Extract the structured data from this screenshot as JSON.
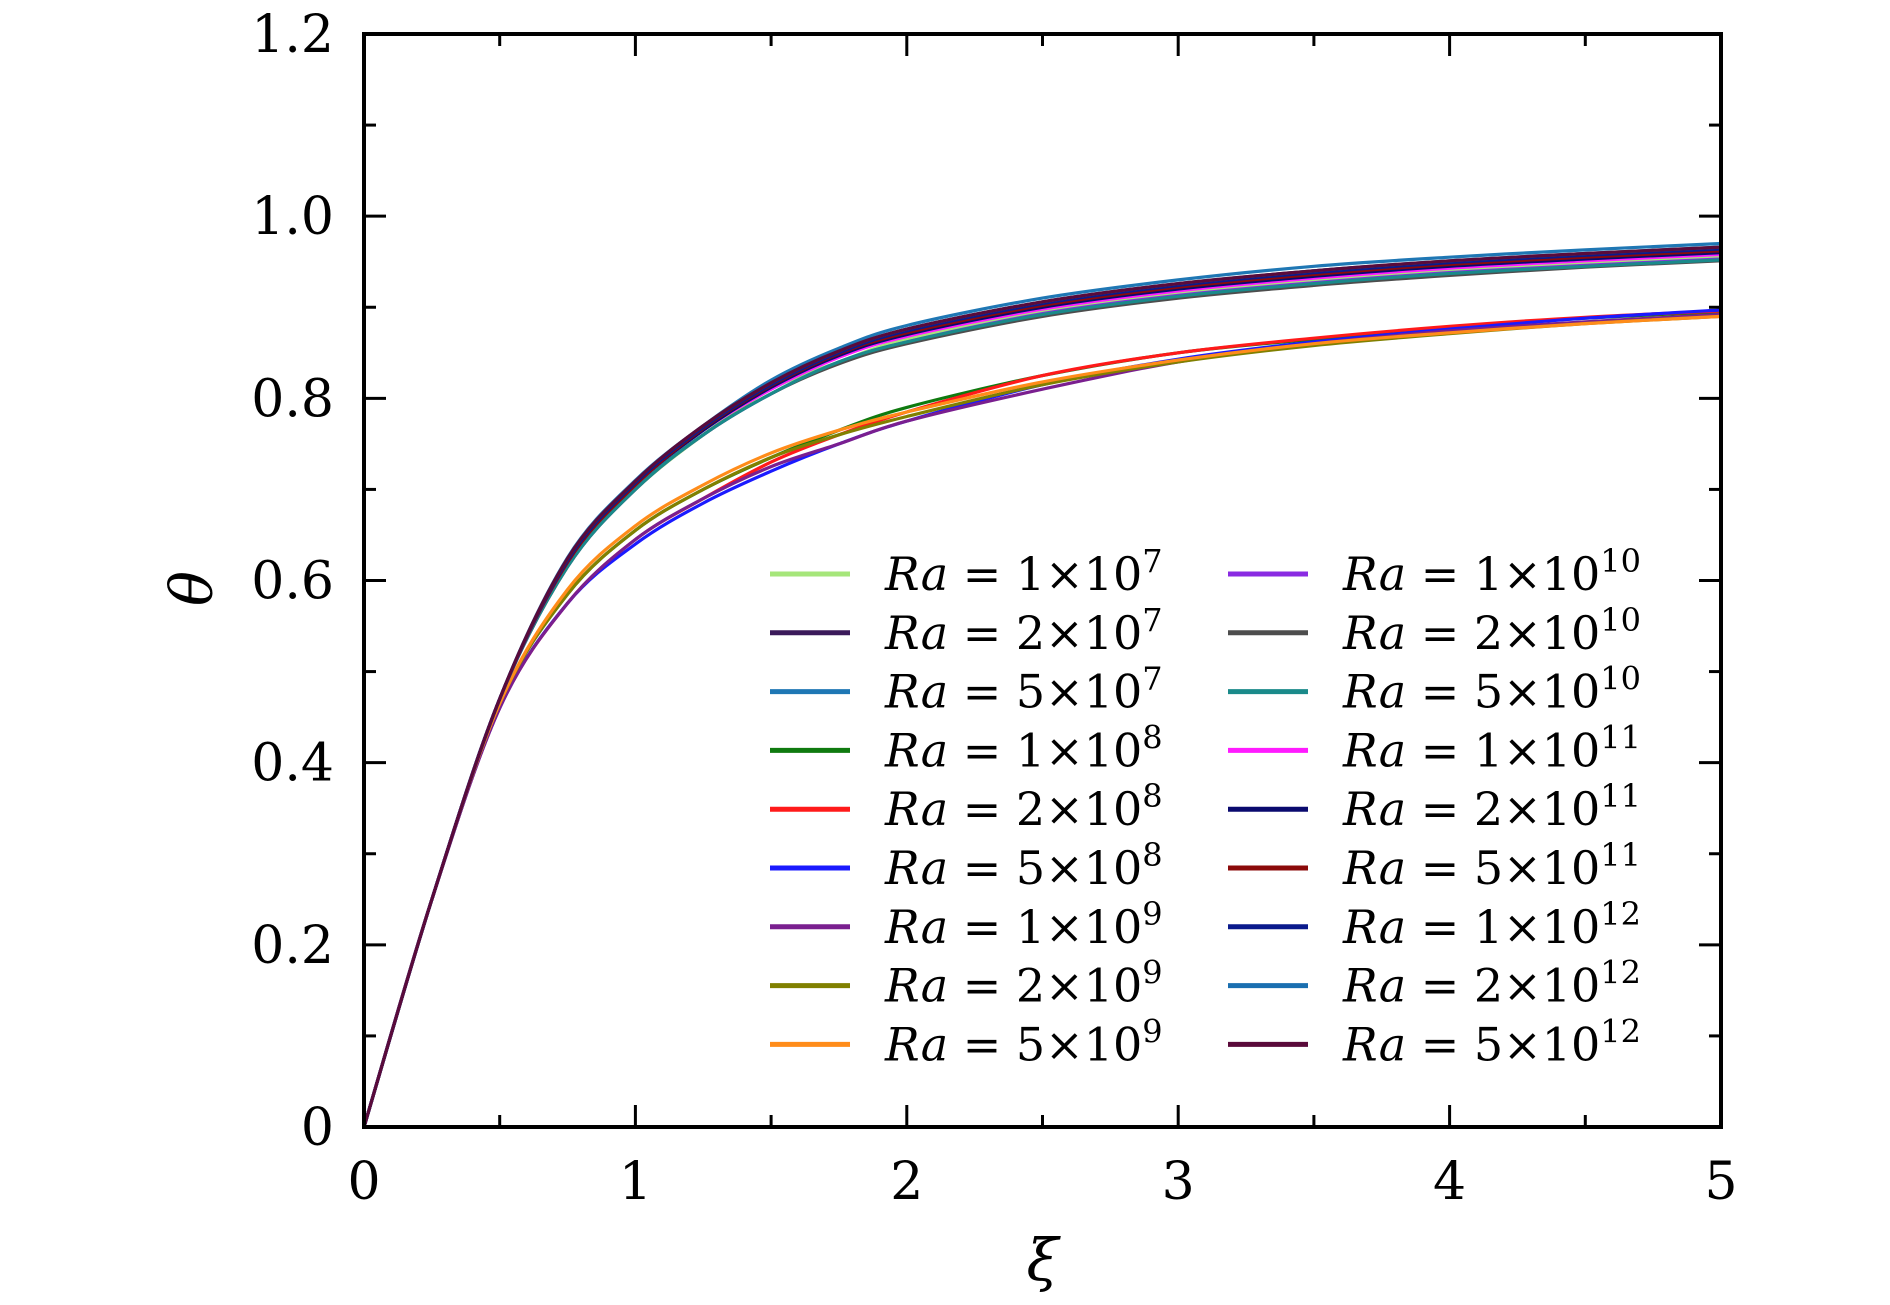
{
  "chart_data": {
    "type": "line",
    "title": "",
    "xlabel": "ξ",
    "ylabel": "θ",
    "xlim": [
      0,
      5
    ],
    "ylim": [
      0,
      1.2
    ],
    "x_ticks": [
      0,
      1,
      2,
      3,
      4,
      5
    ],
    "x_tick_labels": [
      "0",
      "1",
      "2",
      "3",
      "4",
      "5"
    ],
    "y_ticks": [
      0,
      0.2,
      0.4,
      0.6,
      0.8,
      1.0,
      1.2
    ],
    "y_tick_labels": [
      "0",
      "0.2",
      "0.4",
      "0.6",
      "0.8",
      "1.0",
      "1.2"
    ],
    "grid": false,
    "legend_position": "lower-right",
    "legend_columns": 2,
    "x": [
      0,
      0.25,
      0.5,
      0.75,
      1.0,
      1.25,
      1.5,
      1.75,
      2.0,
      2.5,
      3.0,
      3.5,
      4.0,
      4.5,
      5.0
    ],
    "series": [
      {
        "name": "Ra = 1×10^7",
        "label_parts": [
          "Ra",
          "1",
          "7"
        ],
        "color": "#a6e67a",
        "values": [
          0,
          0.25,
          0.47,
          0.62,
          0.7,
          0.76,
          0.81,
          0.84,
          0.865,
          0.895,
          0.915,
          0.93,
          0.94,
          0.948,
          0.955
        ]
      },
      {
        "name": "Ra = 2×10^7",
        "label_parts": [
          "Ra",
          "2",
          "7"
        ],
        "color": "#3b1a5a",
        "values": [
          0,
          0.25,
          0.47,
          0.62,
          0.705,
          0.765,
          0.815,
          0.85,
          0.875,
          0.905,
          0.925,
          0.94,
          0.95,
          0.958,
          0.965
        ]
      },
      {
        "name": "Ra = 5×10^7",
        "label_parts": [
          "Ra",
          "5",
          "7"
        ],
        "color": "#1f77b4",
        "values": [
          0,
          0.25,
          0.47,
          0.625,
          0.71,
          0.77,
          0.82,
          0.855,
          0.88,
          0.91,
          0.93,
          0.945,
          0.955,
          0.963,
          0.97
        ]
      },
      {
        "name": "Ra = 1×10^8",
        "label_parts": [
          "Ra",
          "1",
          "8"
        ],
        "color": "#0f7a0f",
        "values": [
          0,
          0.25,
          0.465,
          0.585,
          0.655,
          0.7,
          0.735,
          0.765,
          0.79,
          0.825,
          0.85,
          0.865,
          0.878,
          0.888,
          0.895
        ]
      },
      {
        "name": "Ra = 2×10^8",
        "label_parts": [
          "Ra",
          "2",
          "8"
        ],
        "color": "#ff1a1a",
        "values": [
          0,
          0.25,
          0.46,
          0.575,
          0.645,
          0.69,
          0.73,
          0.76,
          0.785,
          0.825,
          0.85,
          0.866,
          0.879,
          0.889,
          0.896
        ]
      },
      {
        "name": "Ra = 5×10^8",
        "label_parts": [
          "Ra",
          "5",
          "8"
        ],
        "color": "#1a1aff",
        "values": [
          0,
          0.25,
          0.46,
          0.575,
          0.64,
          0.685,
          0.72,
          0.75,
          0.775,
          0.815,
          0.843,
          0.862,
          0.876,
          0.888,
          0.897
        ]
      },
      {
        "name": "Ra = 1×10^9",
        "label_parts": [
          "Ra",
          "1",
          "9"
        ],
        "color": "#7a1f8f",
        "values": [
          0,
          0.25,
          0.46,
          0.575,
          0.645,
          0.69,
          0.725,
          0.75,
          0.775,
          0.81,
          0.84,
          0.86,
          0.874,
          0.884,
          0.892
        ]
      },
      {
        "name": "Ra = 2×10^9",
        "label_parts": [
          "Ra",
          "2",
          "9"
        ],
        "color": "#808000",
        "values": [
          0,
          0.25,
          0.465,
          0.585,
          0.655,
          0.7,
          0.735,
          0.76,
          0.78,
          0.815,
          0.84,
          0.858,
          0.871,
          0.882,
          0.89
        ]
      },
      {
        "name": "Ra = 5×10^9",
        "label_parts": [
          "Ra",
          "5",
          "9"
        ],
        "color": "#ff8c1a",
        "values": [
          0,
          0.25,
          0.465,
          0.59,
          0.66,
          0.705,
          0.74,
          0.765,
          0.785,
          0.818,
          0.842,
          0.86,
          0.872,
          0.882,
          0.89
        ]
      },
      {
        "name": "Ra = 1×10^10",
        "label_parts": [
          "Ra",
          "1",
          "10"
        ],
        "color": "#8a2be2",
        "values": [
          0,
          0.25,
          0.47,
          0.615,
          0.7,
          0.76,
          0.805,
          0.84,
          0.862,
          0.893,
          0.913,
          0.927,
          0.938,
          0.946,
          0.953
        ]
      },
      {
        "name": "Ra = 2×10^10",
        "label_parts": [
          "Ra",
          "2",
          "10"
        ],
        "color": "#4d4d4d",
        "values": [
          0,
          0.25,
          0.47,
          0.615,
          0.7,
          0.76,
          0.805,
          0.838,
          0.86,
          0.89,
          0.91,
          0.924,
          0.935,
          0.944,
          0.951
        ]
      },
      {
        "name": "Ra = 5×10^10",
        "label_parts": [
          "Ra",
          "5",
          "10"
        ],
        "color": "#1a8a8a",
        "values": [
          0,
          0.25,
          0.47,
          0.615,
          0.7,
          0.76,
          0.805,
          0.84,
          0.862,
          0.892,
          0.912,
          0.926,
          0.937,
          0.945,
          0.952
        ]
      },
      {
        "name": "Ra = 1×10^11",
        "label_parts": [
          "Ra",
          "1",
          "11"
        ],
        "color": "#ff1aff",
        "values": [
          0,
          0.25,
          0.47,
          0.62,
          0.705,
          0.765,
          0.81,
          0.845,
          0.868,
          0.898,
          0.918,
          0.932,
          0.943,
          0.951,
          0.958
        ]
      },
      {
        "name": "Ra = 2×10^11",
        "label_parts": [
          "Ra",
          "2",
          "11"
        ],
        "color": "#0a0a6e",
        "values": [
          0,
          0.25,
          0.47,
          0.62,
          0.705,
          0.765,
          0.812,
          0.847,
          0.87,
          0.9,
          0.92,
          0.934,
          0.945,
          0.953,
          0.96
        ]
      },
      {
        "name": "Ra = 5×10^11",
        "label_parts": [
          "Ra",
          "5",
          "11"
        ],
        "color": "#8b0a0a",
        "values": [
          0,
          0.25,
          0.47,
          0.62,
          0.705,
          0.767,
          0.814,
          0.849,
          0.872,
          0.902,
          0.922,
          0.936,
          0.947,
          0.955,
          0.962
        ]
      },
      {
        "name": "Ra = 1×10^12",
        "label_parts": [
          "Ra",
          "1",
          "12"
        ],
        "color": "#0a1a8c",
        "values": [
          0,
          0.25,
          0.47,
          0.622,
          0.707,
          0.768,
          0.815,
          0.85,
          0.874,
          0.904,
          0.924,
          0.938,
          0.949,
          0.957,
          0.964
        ]
      },
      {
        "name": "Ra = 2×10^12",
        "label_parts": [
          "Ra",
          "2",
          "12"
        ],
        "color": "#1a6fb0",
        "values": [
          0,
          0.25,
          0.47,
          0.624,
          0.709,
          0.77,
          0.817,
          0.852,
          0.876,
          0.906,
          0.926,
          0.94,
          0.951,
          0.959,
          0.966
        ]
      },
      {
        "name": "Ra = 5×10^12",
        "label_parts": [
          "Ra",
          "5",
          "12"
        ],
        "color": "#5a0a3a",
        "values": [
          0,
          0.25,
          0.47,
          0.624,
          0.709,
          0.77,
          0.817,
          0.852,
          0.876,
          0.906,
          0.926,
          0.94,
          0.951,
          0.959,
          0.966
        ]
      }
    ]
  }
}
